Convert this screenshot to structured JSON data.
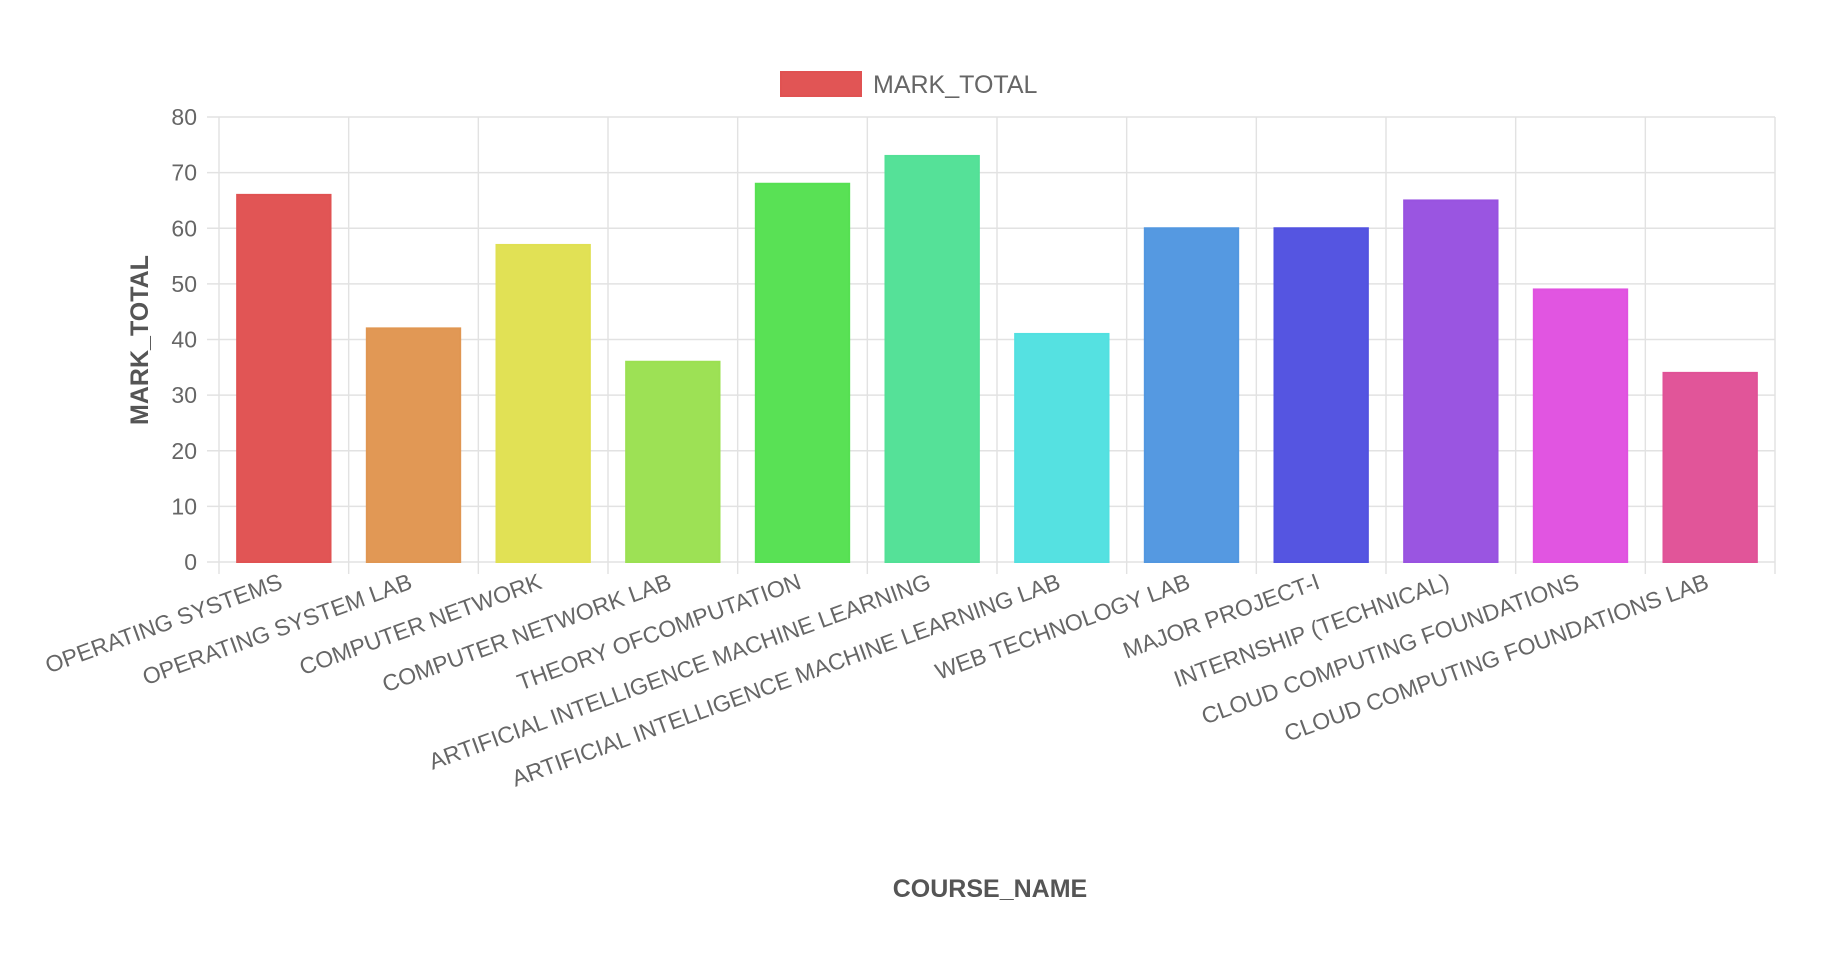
{
  "chart_data": {
    "type": "bar",
    "title": "",
    "xlabel": "COURSE_NAME",
    "ylabel": "MARK_TOTAL",
    "ylim": [
      0,
      80
    ],
    "ytick_step": 10,
    "grid": true,
    "legend_position": "top-center",
    "categories": [
      "OPERATING SYSTEMS",
      "OPERATING SYSTEM LAB",
      "COMPUTER NETWORK",
      "COMPUTER NETWORK LAB",
      "THEORY OFCOMPUTATION",
      "ARTIFICIAL INTELLIGENCE MACHINE LEARNING",
      "ARTIFICIAL INTELLIGENCE MACHINE LEARNING LAB",
      "WEB TECHNOLOGY LAB",
      "MAJOR PROJECT-I",
      "INTERNSHIP (TECHNICAL)",
      "CLOUD COMPUTING FOUNDATIONS",
      "CLOUD COMPUTING FOUNDATIONS LAB"
    ],
    "series": [
      {
        "name": "MARK_TOTAL",
        "values": [
          66,
          42,
          57,
          36,
          68,
          73,
          41,
          60,
          60,
          65,
          49,
          34
        ]
      }
    ],
    "bar_colors": [
      "#e05252",
      "#e09652",
      "#e0e052",
      "#9be052",
      "#56e052",
      "#52e096",
      "#52e0e0",
      "#5297e0",
      "#5252e0",
      "#9852e0",
      "#e052e0",
      "#e05297"
    ],
    "legend_color": "#e05252"
  }
}
